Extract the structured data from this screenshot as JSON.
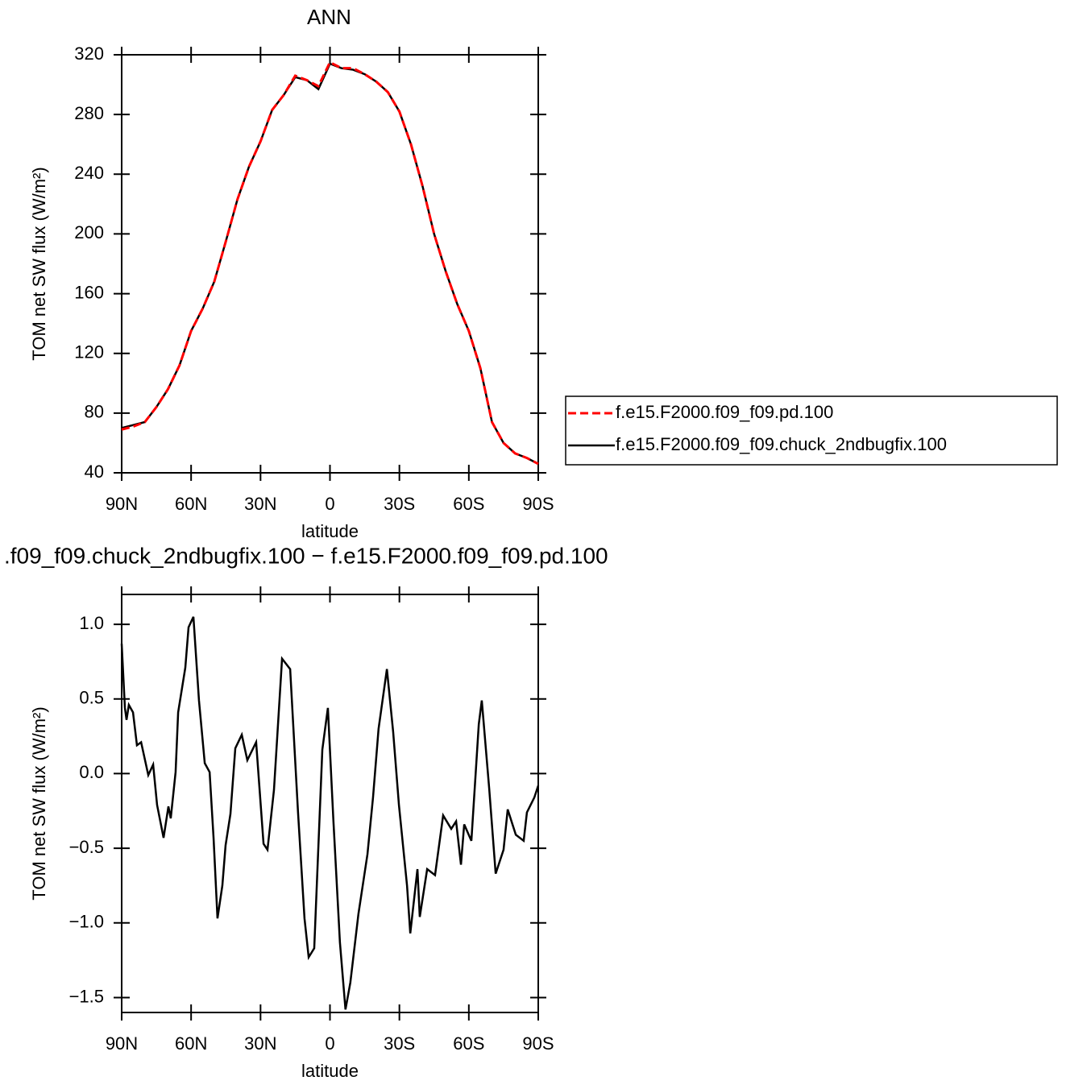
{
  "chart_data": [
    {
      "type": "line",
      "title": "ANN",
      "xlabel": "latitude",
      "ylabel": "TOM net SW flux (W/m²)",
      "x": [
        90,
        85,
        80,
        75,
        70,
        65,
        60,
        55,
        50,
        45,
        40,
        35,
        30,
        25,
        20,
        15,
        10,
        5,
        0,
        -5,
        -10,
        -15,
        -20,
        -25,
        -30,
        -35,
        -40,
        -45,
        -50,
        -55,
        -60,
        -65,
        -70,
        -75,
        -80,
        -85,
        -90
      ],
      "series": [
        {
          "name": "f.e15.F2000.f09_f09.pd.100",
          "color": "#ff0000",
          "line_style": "dashed",
          "values": [
            69,
            71,
            74,
            84,
            96,
            112,
            135,
            150,
            168,
            195,
            223,
            245,
            262,
            283,
            293,
            306,
            303,
            299,
            315,
            311,
            311,
            307,
            302,
            295,
            282,
            260,
            232,
            200,
            175,
            153,
            135,
            110,
            74,
            60,
            53,
            50,
            46
          ]
        },
        {
          "name": "f.e15.F2000.f09_f09.chuck_2ndbugfix.100",
          "color": "#000000",
          "line_style": "solid",
          "values": [
            70,
            72,
            74,
            84,
            96,
            112,
            135,
            150,
            168,
            195,
            223,
            245,
            262,
            283,
            293,
            305,
            303,
            297,
            314,
            311,
            310,
            307,
            302,
            295,
            282,
            260,
            232,
            200,
            175,
            153,
            135,
            110,
            74,
            60,
            53,
            50,
            46
          ]
        }
      ],
      "xlim": [
        90,
        -90
      ],
      "xticks": [
        {
          "value": 90,
          "label": "90N"
        },
        {
          "value": 60,
          "label": "60N"
        },
        {
          "value": 30,
          "label": "30N"
        },
        0,
        {
          "value": -30,
          "label": "30S"
        },
        {
          "value": -60,
          "label": "60S"
        },
        {
          "value": -90,
          "label": "90S"
        }
      ],
      "ylim": [
        40,
        320
      ],
      "yticks": [
        40,
        80,
        120,
        160,
        200,
        240,
        280,
        320
      ],
      "legend": "right"
    },
    {
      "type": "line",
      "title": ".f09_f09.chuck_2ndbugfix.100 − f.e15.F2000.f09_f09.pd.100",
      "xlabel": "latitude",
      "ylabel": "TOM net SW flux (W/m²)",
      "x": [
        90,
        88.6,
        87.9,
        86.9,
        85.1,
        83.4,
        81.6,
        78.5,
        76.4,
        74.7,
        71.9,
        69.8,
        68.8,
        66.7,
        65.6,
        62.5,
        61.1,
        59,
        56.6,
        54.1,
        52,
        50.3,
        48.6,
        46.5,
        45.1,
        43,
        40.9,
        38.1,
        35.7,
        31.9,
        28.7,
        27,
        24.2,
        20.7,
        17.2,
        13.8,
        11,
        9.2,
        6.8,
        3.3,
        0.9,
        -1.5,
        -4.3,
        -6.7,
        -8.8,
        -12.3,
        -16.2,
        -18.6,
        -21,
        -24.6,
        -27.3,
        -29.8,
        -33.3,
        -34.7,
        -37.8,
        -38.8,
        -42,
        -45.4,
        -48.9,
        -52.4,
        -54.5,
        -56.6,
        -58,
        -61.1,
        -64.3,
        -65.6,
        -68.8,
        -71.6,
        -75,
        -76.8,
        -80.3,
        -83.7,
        -85.1,
        -88.3,
        -90
      ],
      "values": [
        0.87,
        0.44,
        0.36,
        0.46,
        0.41,
        0.19,
        0.21,
        -0.01,
        0.06,
        -0.21,
        -0.43,
        -0.22,
        -0.3,
        0.01,
        0.41,
        0.71,
        0.98,
        1.05,
        0.49,
        0.07,
        0.01,
        -0.43,
        -0.97,
        -0.75,
        -0.48,
        -0.27,
        0.17,
        0.26,
        0.09,
        0.21,
        -0.47,
        -0.51,
        -0.11,
        0.77,
        0.7,
        -0.26,
        -0.97,
        -1.23,
        -1.17,
        0.16,
        0.44,
        -0.32,
        -1.13,
        -1.58,
        -1.4,
        -0.94,
        -0.54,
        -0.16,
        0.3,
        0.7,
        0.28,
        -0.21,
        -0.75,
        -1.07,
        -0.64,
        -0.96,
        -0.64,
        -0.68,
        -0.28,
        -0.37,
        -0.32,
        -0.61,
        -0.34,
        -0.45,
        0.33,
        0.49,
        -0.1,
        -0.67,
        -0.51,
        -0.24,
        -0.41,
        -0.45,
        -0.26,
        -0.16,
        -0.08
      ],
      "color": "#000000",
      "xlim": [
        90,
        -90
      ],
      "xticks": [
        {
          "value": 90,
          "label": "90N"
        },
        {
          "value": 60,
          "label": "60N"
        },
        {
          "value": 30,
          "label": "30N"
        },
        0,
        {
          "value": -30,
          "label": "30S"
        },
        {
          "value": -60,
          "label": "60S"
        },
        {
          "value": -90,
          "label": "90S"
        }
      ],
      "ylim": [
        -1.6,
        1.2
      ],
      "yticks": [
        {
          "value": -1.5,
          "label": "−1.5"
        },
        {
          "value": -1,
          "label": "−1.0"
        },
        {
          "value": -0.5,
          "label": "−0.5"
        },
        {
          "value": 0,
          "label": "0.0"
        },
        0.5,
        {
          "value": 1,
          "label": "1.0"
        }
      ]
    }
  ]
}
